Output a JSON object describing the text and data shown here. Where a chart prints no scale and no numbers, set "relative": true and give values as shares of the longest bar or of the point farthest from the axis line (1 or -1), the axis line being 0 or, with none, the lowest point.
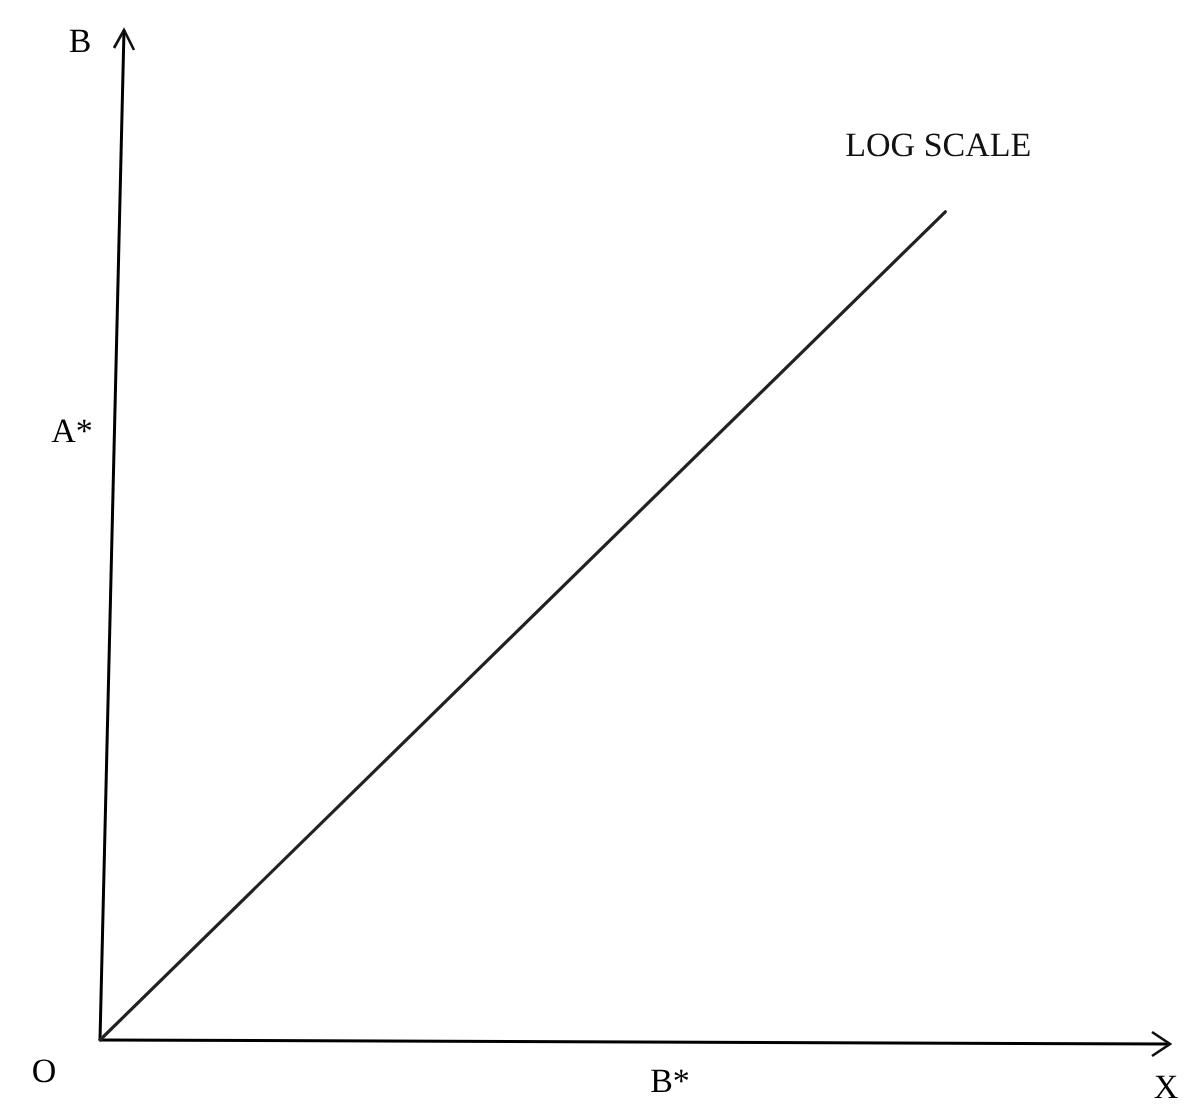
{
  "chart_data": {
    "type": "line",
    "relative": true,
    "xlabel": "X",
    "ylabel": "B",
    "categories": [
      null,
      null
    ],
    "series": [
      {
        "name": "LOG SCALE",
        "color": "#222222",
        "values": [
          0,
          1
        ]
      }
    ],
    "annotations": [
      "O",
      "A*",
      "B*"
    ],
    "legend": false,
    "marker": "none",
    "line_style": "solid"
  }
}
